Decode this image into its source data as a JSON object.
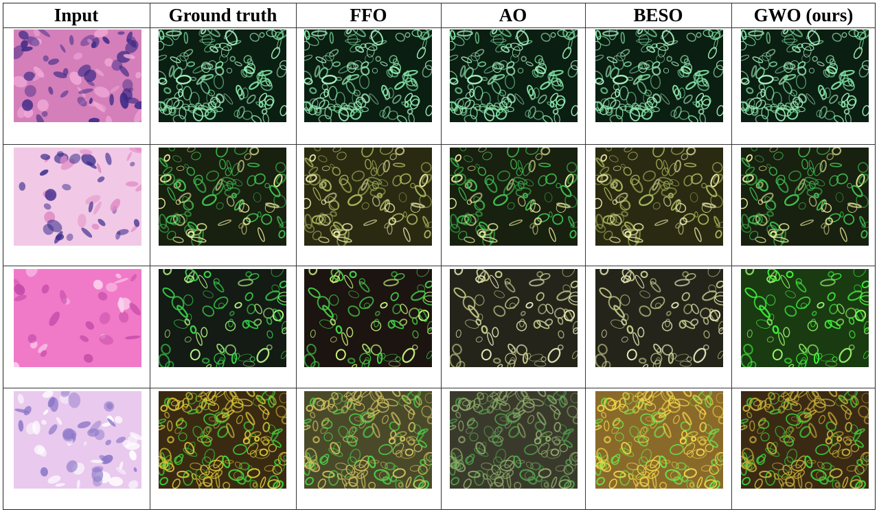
{
  "columns": [
    "Input",
    "Ground truth",
    "FFO",
    "AO",
    "BESO",
    "GWO (ours)"
  ],
  "rows": [
    {
      "cells": [
        {
          "kind": "he",
          "bg": "#d47fba",
          "blob": "#3d2a86",
          "accent": "#f0a9d8",
          "density": 70
        },
        {
          "kind": "fl",
          "bg": "#0b1e12",
          "edge": "#7fe0a2",
          "glow": "#a8f5c2",
          "density": 120
        },
        {
          "kind": "fl",
          "bg": "#0b1e12",
          "edge": "#7fe0a2",
          "glow": "#a8f5c2",
          "density": 120
        },
        {
          "kind": "fl",
          "bg": "#0b1e12",
          "edge": "#7fe0a2",
          "glow": "#a8f5c2",
          "density": 120
        },
        {
          "kind": "fl",
          "bg": "#0b1e12",
          "edge": "#7fe0a2",
          "glow": "#a8f5c2",
          "density": 120
        },
        {
          "kind": "fl",
          "bg": "#0b1e12",
          "edge": "#7fe0a2",
          "glow": "#a8f5c2",
          "density": 120
        }
      ]
    },
    {
      "cells": [
        {
          "kind": "he",
          "bg": "#f1c9e6",
          "blob": "#3a2c8c",
          "accent": "#e08ac4",
          "density": 45
        },
        {
          "kind": "fl",
          "bg": "#18200f",
          "edge": "#3fbf52",
          "glow": "#f0f3a0",
          "density": 90
        },
        {
          "kind": "fl",
          "bg": "#2a2a12",
          "edge": "#a7b55a",
          "glow": "#f3f0b0",
          "density": 90
        },
        {
          "kind": "fl",
          "bg": "#18200f",
          "edge": "#3fbf52",
          "glow": "#f0f3a0",
          "density": 90
        },
        {
          "kind": "fl",
          "bg": "#2a2a12",
          "edge": "#a7b55a",
          "glow": "#f3f0b0",
          "density": 90
        },
        {
          "kind": "fl",
          "bg": "#18200f",
          "edge": "#3fbf52",
          "glow": "#f0f3a0",
          "density": 90
        }
      ]
    },
    {
      "cells": [
        {
          "kind": "he",
          "bg": "#f07ac8",
          "blob": "#c24aa8",
          "accent": "#fbd3ee",
          "density": 30
        },
        {
          "kind": "fl",
          "bg": "#141a14",
          "edge": "#38d24a",
          "glow": "#b8ff8a",
          "density": 70
        },
        {
          "kind": "fl",
          "bg": "#1c1410",
          "edge": "#46d24a",
          "glow": "#d0ff80",
          "density": 70
        },
        {
          "kind": "fl",
          "bg": "#24241a",
          "edge": "#c5c98a",
          "glow": "#f0f0c0",
          "density": 70
        },
        {
          "kind": "fl",
          "bg": "#24241a",
          "edge": "#c5c98a",
          "glow": "#f0f0c0",
          "density": 70
        },
        {
          "kind": "fl",
          "bg": "#1a3a12",
          "edge": "#3ff23a",
          "glow": "#9bff6a",
          "density": 70
        }
      ]
    },
    {
      "cells": [
        {
          "kind": "he",
          "bg": "#e9c9ee",
          "blob": "#8c78c8",
          "accent": "#ffffff",
          "density": 60
        },
        {
          "kind": "fl",
          "bg": "#3a2a12",
          "edge": "#d8c53a",
          "glow": "#3fcf3a",
          "density": 150
        },
        {
          "kind": "fl",
          "bg": "#4a4a2a",
          "edge": "#d0c060",
          "glow": "#4fcf4a",
          "density": 150
        },
        {
          "kind": "fl",
          "bg": "#3a3a2c",
          "edge": "#8faa6a",
          "glow": "#4f9f4a",
          "density": 150
        },
        {
          "kind": "fl",
          "bg": "#8a6a2a",
          "edge": "#f0d64a",
          "glow": "#6fdf4a",
          "density": 150
        },
        {
          "kind": "fl",
          "bg": "#3a2a14",
          "edge": "#c8b03a",
          "glow": "#3fcf3a",
          "density": 150
        }
      ]
    }
  ]
}
